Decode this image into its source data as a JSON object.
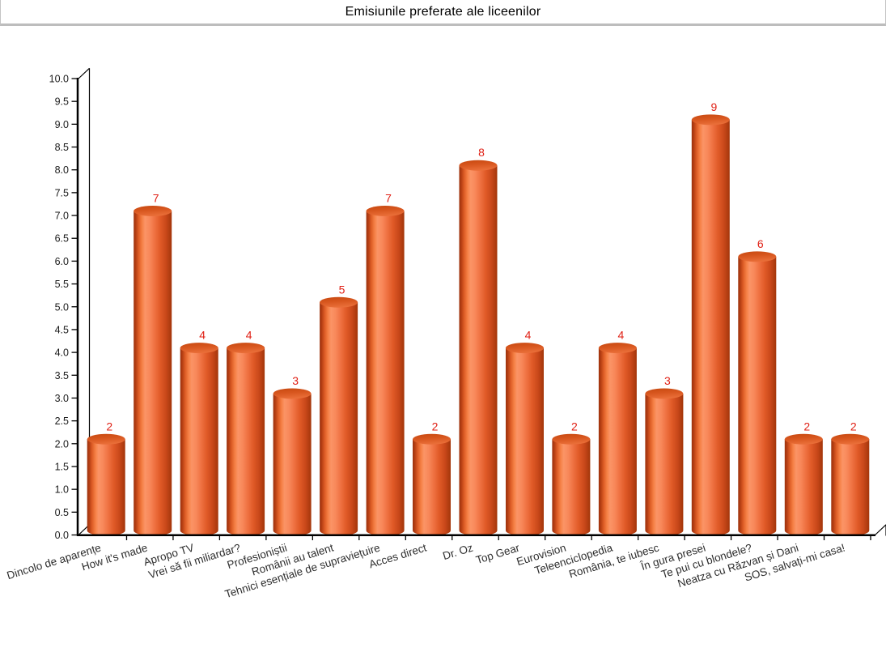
{
  "title": "Emisiunile preferate ale liceenilor",
  "chart_data": {
    "type": "bar",
    "style": "3d-cylinder",
    "title": "Emisiunile preferate ale liceenilor",
    "categories": [
      "Dincolo de aparențe",
      "How it's made",
      "Apropo TV",
      "Vrei să fii miliardar?",
      "Profesioniștii",
      "Românii au talent",
      "Tehnici esențiale de supraviețuire",
      "Acces direct",
      "Dr. Oz",
      "Top Gear",
      "Eurovision",
      "Teleenciclopedia",
      "România, te iubesc",
      "În gura presei",
      "Te pui cu blondele?",
      "Neatza cu Răzvan și Dani",
      "SOS, salvați-mi casa!"
    ],
    "values": [
      2,
      7,
      4,
      4,
      3,
      5,
      7,
      2,
      8,
      4,
      2,
      4,
      3,
      9,
      6,
      2,
      2
    ],
    "xlabel": "",
    "ylabel": "",
    "ylim": [
      0,
      10
    ],
    "ytick_step": 0.5,
    "ytick_decimals": 1,
    "grid": false,
    "legend": "none",
    "category_label_rotation_deg": -17,
    "colors": {
      "value_label": "#e02015",
      "axis": "#000000",
      "category_label": "#2e2e2e",
      "ytick_label": "#1a1a1a",
      "bar_gradient": [
        "#9c330e",
        "#b23c12",
        "#dd5c25",
        "#f58045",
        "#fb9466",
        "#f8885a",
        "#ee7040",
        "#e05a27",
        "#c9481a",
        "#b03c10",
        "#a23509"
      ],
      "bar_gradient_offsets": [
        0,
        0.05,
        0.13,
        0.22,
        0.3,
        0.42,
        0.56,
        0.7,
        0.85,
        0.95,
        1
      ],
      "top_gradient": [
        "#c7480f",
        "#d8571f",
        "#e96e38"
      ]
    }
  }
}
